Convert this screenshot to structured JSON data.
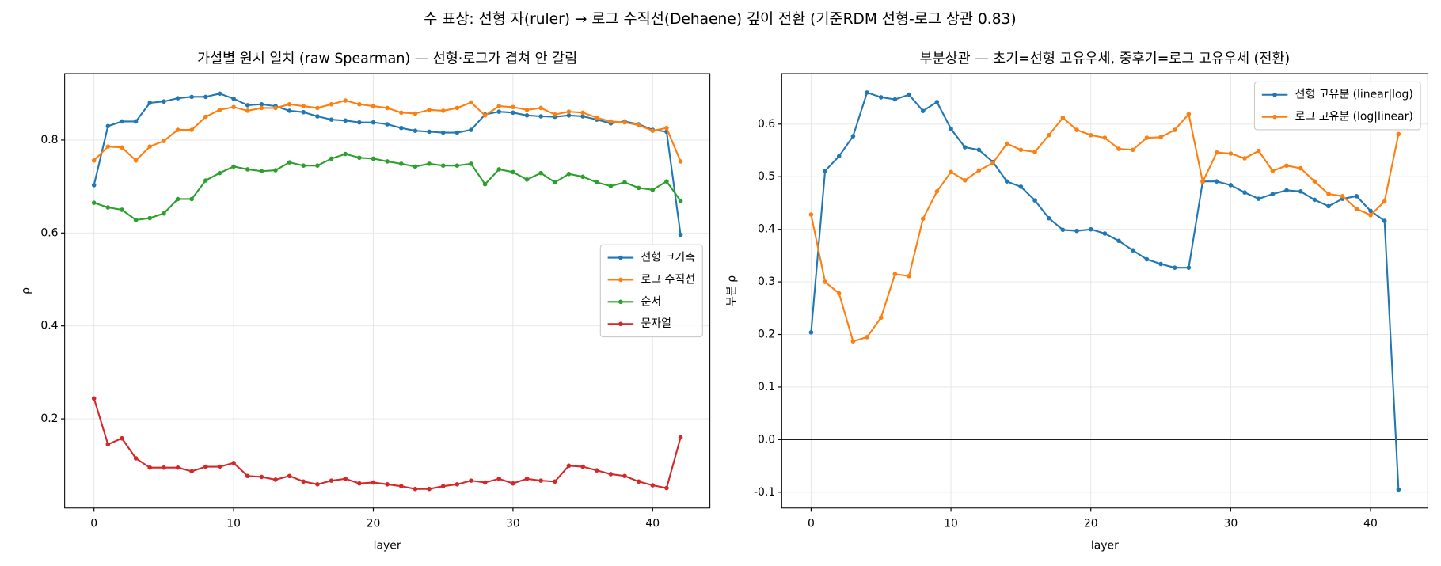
{
  "title": "수 표상: 선형 자(ruler) → 로그 수직선(Dehaene) 깊이 전환  (기준RDM 선형-로그 상관 0.83)",
  "chart_data": [
    {
      "type": "line",
      "title": "가설별 원시 일치 (raw Spearman) — 선형·로그가 겹쳐 안 갈림",
      "xlabel": "layer",
      "ylabel": "ρ",
      "x": [
        0,
        1,
        2,
        3,
        4,
        5,
        6,
        7,
        8,
        9,
        10,
        11,
        12,
        13,
        14,
        15,
        16,
        17,
        18,
        19,
        20,
        21,
        22,
        23,
        24,
        25,
        26,
        27,
        28,
        29,
        30,
        31,
        32,
        33,
        34,
        35,
        36,
        37,
        38,
        39,
        40,
        41,
        42
      ],
      "series": [
        {
          "name": "선형 크기축",
          "color": "#1f77b4",
          "values": [
            0.703,
            0.83,
            0.84,
            0.84,
            0.88,
            0.883,
            0.89,
            0.893,
            0.893,
            0.9,
            0.889,
            0.875,
            0.877,
            0.873,
            0.863,
            0.86,
            0.851,
            0.844,
            0.842,
            0.838,
            0.838,
            0.834,
            0.826,
            0.82,
            0.818,
            0.816,
            0.816,
            0.822,
            0.855,
            0.861,
            0.859,
            0.853,
            0.851,
            0.85,
            0.853,
            0.851,
            0.844,
            0.836,
            0.84,
            0.834,
            0.822,
            0.818,
            0.596
          ]
        },
        {
          "name": "로그 수직선",
          "color": "#ff7f0e",
          "values": [
            0.756,
            0.786,
            0.784,
            0.756,
            0.786,
            0.798,
            0.822,
            0.822,
            0.85,
            0.865,
            0.871,
            0.863,
            0.869,
            0.869,
            0.877,
            0.873,
            0.869,
            0.877,
            0.885,
            0.877,
            0.873,
            0.869,
            0.859,
            0.857,
            0.865,
            0.863,
            0.869,
            0.881,
            0.853,
            0.873,
            0.871,
            0.865,
            0.869,
            0.855,
            0.861,
            0.859,
            0.848,
            0.84,
            0.838,
            0.832,
            0.82,
            0.826,
            0.754
          ]
        },
        {
          "name": "순서",
          "color": "#2ca02c",
          "values": [
            0.665,
            0.655,
            0.65,
            0.628,
            0.632,
            0.642,
            0.673,
            0.673,
            0.713,
            0.729,
            0.743,
            0.737,
            0.733,
            0.735,
            0.752,
            0.745,
            0.745,
            0.76,
            0.77,
            0.762,
            0.76,
            0.754,
            0.749,
            0.743,
            0.749,
            0.745,
            0.745,
            0.749,
            0.705,
            0.737,
            0.731,
            0.715,
            0.729,
            0.709,
            0.727,
            0.721,
            0.709,
            0.701,
            0.709,
            0.697,
            0.693,
            0.711,
            0.669
          ]
        },
        {
          "name": "문자열",
          "color": "#d62728",
          "values": [
            0.244,
            0.145,
            0.158,
            0.115,
            0.095,
            0.095,
            0.095,
            0.087,
            0.097,
            0.097,
            0.105,
            0.077,
            0.075,
            0.069,
            0.077,
            0.065,
            0.059,
            0.067,
            0.071,
            0.061,
            0.063,
            0.059,
            0.055,
            0.049,
            0.049,
            0.055,
            0.059,
            0.067,
            0.063,
            0.071,
            0.061,
            0.071,
            0.067,
            0.065,
            0.099,
            0.097,
            0.089,
            0.081,
            0.077,
            0.065,
            0.057,
            0.051,
            0.16
          ]
        }
      ],
      "xlim": [
        -2.1,
        44.1
      ],
      "ylim": [
        0.008,
        0.943
      ],
      "xticks": [
        0,
        10,
        20,
        30,
        40
      ],
      "yticks": [
        0.2,
        0.4,
        0.6,
        0.8
      ],
      "grid": true,
      "legend": "center right"
    },
    {
      "type": "line",
      "title": "부분상관 — 초기=선형 고유우세, 중후기=로그 고유우세 (전환)",
      "xlabel": "layer",
      "ylabel": "부분 ρ",
      "x": [
        0,
        1,
        2,
        3,
        4,
        5,
        6,
        7,
        8,
        9,
        10,
        11,
        12,
        13,
        14,
        15,
        16,
        17,
        18,
        19,
        20,
        21,
        22,
        23,
        24,
        25,
        26,
        27,
        28,
        29,
        30,
        31,
        32,
        33,
        34,
        35,
        36,
        37,
        38,
        39,
        40,
        41,
        42
      ],
      "series": [
        {
          "name": "선형 고유분 (linear|log)",
          "color": "#1f77b4",
          "values": [
            0.204,
            0.511,
            0.539,
            0.577,
            0.66,
            0.651,
            0.647,
            0.656,
            0.625,
            0.642,
            0.591,
            0.556,
            0.551,
            0.528,
            0.491,
            0.481,
            0.455,
            0.421,
            0.399,
            0.397,
            0.4,
            0.392,
            0.378,
            0.36,
            0.343,
            0.334,
            0.327,
            0.327,
            0.491,
            0.491,
            0.484,
            0.47,
            0.458,
            0.467,
            0.474,
            0.472,
            0.456,
            0.444,
            0.458,
            0.463,
            0.435,
            0.416,
            -0.095
          ]
        },
        {
          "name": "로그 고유분 (log|linear)",
          "color": "#ff7f0e",
          "values": [
            0.428,
            0.3,
            0.278,
            0.187,
            0.195,
            0.232,
            0.315,
            0.311,
            0.42,
            0.472,
            0.509,
            0.493,
            0.512,
            0.526,
            0.563,
            0.551,
            0.547,
            0.579,
            0.612,
            0.589,
            0.579,
            0.574,
            0.553,
            0.551,
            0.574,
            0.575,
            0.589,
            0.619,
            0.49,
            0.546,
            0.544,
            0.535,
            0.549,
            0.511,
            0.521,
            0.516,
            0.491,
            0.467,
            0.463,
            0.439,
            0.427,
            0.453,
            0.581
          ]
        }
      ],
      "xlim": [
        -2.1,
        44.1
      ],
      "ylim": [
        -0.13,
        0.696
      ],
      "xticks": [
        0,
        10,
        20,
        30,
        40
      ],
      "yticks": [
        -0.1,
        {
          "value": 0,
          "label": "0.0"
        },
        0.1,
        0.2,
        0.3,
        0.4,
        0.5,
        0.6
      ],
      "reference_line": 0,
      "grid": true,
      "legend": "upper right"
    }
  ]
}
